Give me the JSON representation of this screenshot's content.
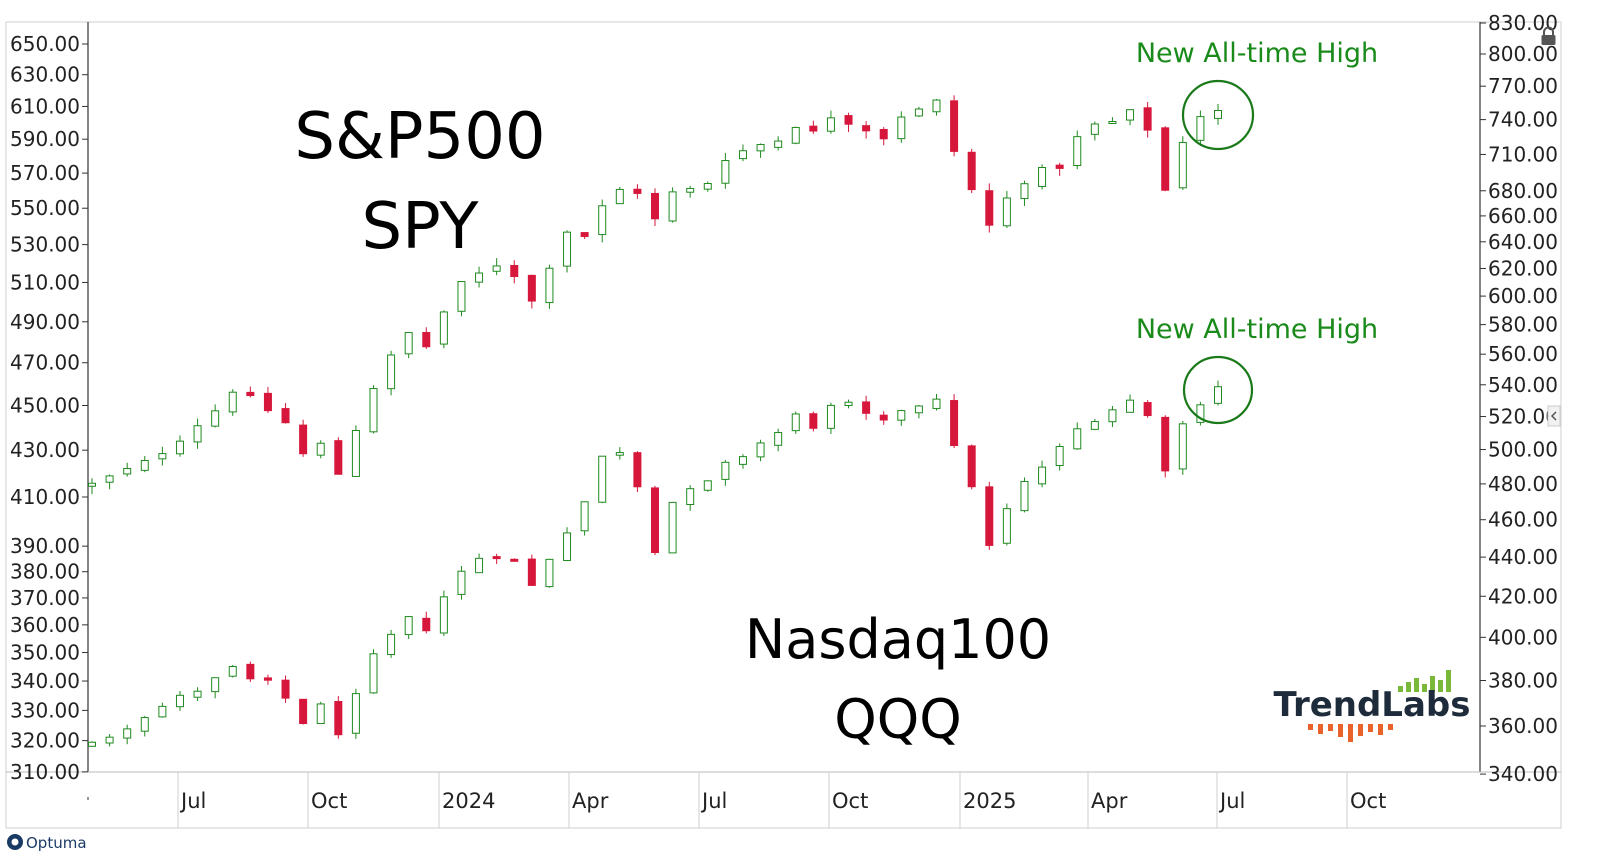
{
  "chart_data": {
    "type": "candlestick",
    "x_ticks": [
      "Jul",
      "Oct",
      "2024",
      "Apr",
      "Jul",
      "Oct",
      "2025",
      "Apr",
      "Jul",
      "Oct"
    ],
    "left_axis_ticks": [
      "650.00",
      "630.00",
      "610.00",
      "590.00",
      "570.00",
      "550.00",
      "530.00",
      "510.00",
      "490.00",
      "470.00",
      "450.00",
      "430.00",
      "410.00",
      "390.00",
      "380.00",
      "370.00",
      "360.00",
      "350.00",
      "340.00",
      "330.00",
      "320.00",
      "310.00"
    ],
    "right_axis_ticks": [
      "830.00",
      "800.00",
      "770.00",
      "740.00",
      "710.00",
      "680.00",
      "660.00",
      "640.00",
      "620.00",
      "600.00",
      "580.00",
      "560.00",
      "540.00",
      "520.00",
      "500.00",
      "480.00",
      "460.00",
      "440.00",
      "420.00",
      "400.00",
      "380.00",
      "360.00",
      "340.00"
    ],
    "scale": "log",
    "grid": false,
    "series": [
      {
        "ticker": "SPY",
        "label_lines": [
          "S&P500",
          "SPY"
        ],
        "annotation": "New All-time High",
        "closes": [
          [
            0,
            415
          ],
          [
            3,
            424
          ],
          [
            5,
            436
          ],
          [
            7,
            448
          ],
          [
            8,
            458
          ],
          [
            9,
            452
          ],
          [
            10,
            448
          ],
          [
            11,
            442
          ],
          [
            12,
            428
          ],
          [
            13,
            432
          ],
          [
            14,
            420
          ],
          [
            15,
            440
          ],
          [
            16,
            459
          ],
          [
            17,
            472
          ],
          [
            18,
            484
          ],
          [
            19,
            478
          ],
          [
            20,
            495
          ],
          [
            21,
            508
          ],
          [
            22,
            514
          ],
          [
            23,
            520
          ],
          [
            24,
            515
          ],
          [
            25,
            500
          ],
          [
            26,
            520
          ],
          [
            27,
            538
          ],
          [
            28,
            535
          ],
          [
            29,
            550
          ],
          [
            30,
            560
          ],
          [
            31,
            560
          ],
          [
            32,
            543
          ],
          [
            33,
            558
          ],
          [
            34,
            560
          ],
          [
            35,
            565
          ],
          [
            36,
            580
          ],
          [
            37,
            583
          ],
          [
            38,
            587
          ],
          [
            39,
            590
          ],
          [
            40,
            600
          ],
          [
            41,
            593
          ],
          [
            42,
            605
          ],
          [
            43,
            602
          ],
          [
            44,
            597
          ],
          [
            45,
            592
          ],
          [
            46,
            605
          ],
          [
            47,
            607
          ],
          [
            48,
            612
          ],
          [
            49,
            583
          ],
          [
            50,
            560
          ],
          [
            51,
            540
          ],
          [
            52,
            555
          ],
          [
            53,
            567
          ],
          [
            54,
            570
          ],
          [
            55,
            575
          ],
          [
            56,
            590
          ],
          [
            57,
            598
          ],
          [
            58,
            600
          ],
          [
            59,
            605
          ],
          [
            60,
            597
          ],
          [
            61,
            560
          ],
          [
            62,
            590
          ],
          [
            63,
            605
          ],
          [
            64,
            606
          ]
        ]
      },
      {
        "ticker": "QQQ",
        "label_lines": [
          "Nasdaq100",
          "QQQ"
        ],
        "annotation": "New All-time High",
        "closes": [
          [
            0,
            352
          ],
          [
            3,
            365
          ],
          [
            5,
            372
          ],
          [
            7,
            380
          ],
          [
            8,
            385
          ],
          [
            9,
            380
          ],
          [
            10,
            378
          ],
          [
            11,
            372
          ],
          [
            12,
            362
          ],
          [
            13,
            368
          ],
          [
            14,
            358
          ],
          [
            15,
            372
          ],
          [
            16,
            390
          ],
          [
            17,
            400
          ],
          [
            18,
            408
          ],
          [
            19,
            405
          ],
          [
            20,
            420
          ],
          [
            21,
            432
          ],
          [
            22,
            440
          ],
          [
            23,
            442
          ],
          [
            24,
            438
          ],
          [
            25,
            425
          ],
          [
            26,
            440
          ],
          [
            27,
            455
          ],
          [
            28,
            470
          ],
          [
            29,
            495
          ],
          [
            30,
            500
          ],
          [
            31,
            480
          ],
          [
            32,
            445
          ],
          [
            33,
            470
          ],
          [
            34,
            475
          ],
          [
            35,
            480
          ],
          [
            36,
            490
          ],
          [
            37,
            497
          ],
          [
            38,
            504
          ],
          [
            39,
            510
          ],
          [
            40,
            520
          ],
          [
            41,
            515
          ],
          [
            42,
            525
          ],
          [
            43,
            526
          ],
          [
            44,
            520
          ],
          [
            45,
            515
          ],
          [
            46,
            525
          ],
          [
            47,
            528
          ],
          [
            48,
            533
          ],
          [
            49,
            500
          ],
          [
            50,
            480
          ],
          [
            51,
            445
          ],
          [
            52,
            465
          ],
          [
            53,
            480
          ],
          [
            54,
            490
          ],
          [
            55,
            500
          ],
          [
            56,
            512
          ],
          [
            57,
            520
          ],
          [
            58,
            525
          ],
          [
            59,
            530
          ],
          [
            60,
            520
          ],
          [
            61,
            490
          ],
          [
            62,
            515
          ],
          [
            63,
            530
          ],
          [
            64,
            540
          ]
        ]
      }
    ]
  },
  "logo": {
    "name": "TrendLabs"
  },
  "brand": {
    "name": "Optuma"
  },
  "icons": {
    "lock": "lock-icon",
    "collapse": "chevron-left-icon"
  },
  "colors": {
    "up": "#1f8a1f",
    "down": "#d6163a",
    "annotation": "#1a8a1a",
    "axis": "#333333"
  }
}
